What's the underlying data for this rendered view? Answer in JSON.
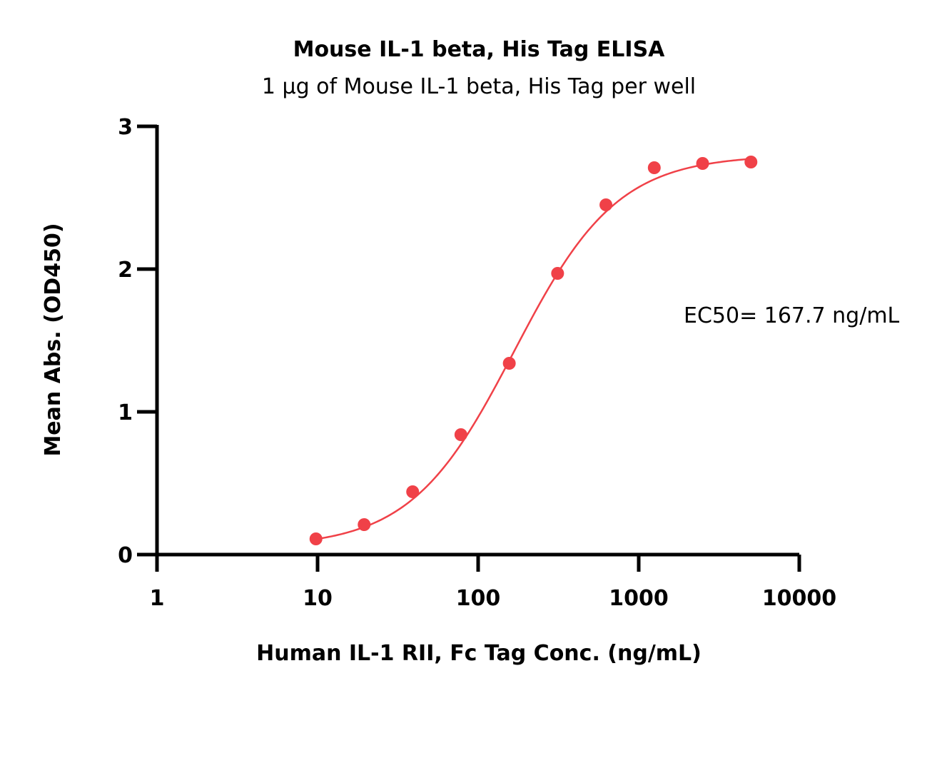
{
  "chart_data": {
    "type": "scatter",
    "title": "Mouse IL-1 beta, His Tag ELISA",
    "subtitle": "1 μg of Mouse IL-1 beta, His Tag per well",
    "xlabel": "Human IL-1 RII, Fc Tag Conc. (ng/mL)",
    "ylabel": "Mean Abs. (OD450)",
    "x_scale": "log",
    "xlim": [
      1,
      10000
    ],
    "ylim": [
      0,
      3
    ],
    "x_ticks": [
      1,
      10,
      100,
      1000,
      10000
    ],
    "x_tick_labels": [
      "1",
      "10",
      "100",
      "1000",
      "10000"
    ],
    "y_ticks": [
      0,
      1,
      2,
      3
    ],
    "y_tick_labels": [
      "0",
      "1",
      "2",
      "3"
    ],
    "grid": false,
    "annotation": "EC50= 167.7 ng/mL",
    "series": [
      {
        "x": [
          9.77,
          19.5,
          39.1,
          78.1,
          156.3,
          312.5,
          625,
          1250,
          2500,
          5000
        ],
        "y": [
          0.11,
          0.21,
          0.44,
          0.84,
          1.34,
          1.97,
          2.45,
          2.71,
          2.74,
          2.75
        ],
        "color": "#f04148",
        "fit": {
          "type": "4PL",
          "bottom": 0.05,
          "top": 2.8,
          "ec50": 167.7,
          "hill": 1.35
        }
      }
    ]
  }
}
